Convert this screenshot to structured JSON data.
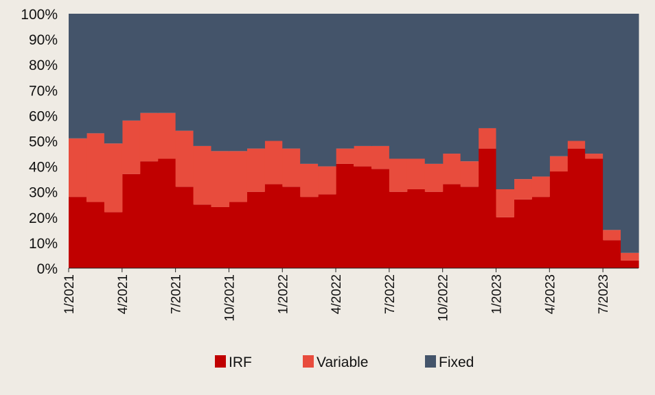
{
  "chart_data": {
    "type": "area",
    "stacked": true,
    "step": true,
    "x": [
      "1/2021",
      "2/2021",
      "3/2021",
      "4/2021",
      "5/2021",
      "6/2021",
      "7/2021",
      "8/2021",
      "9/2021",
      "10/2021",
      "11/2021",
      "12/2021",
      "1/2022",
      "2/2022",
      "3/2022",
      "4/2022",
      "5/2022",
      "6/2022",
      "7/2022",
      "8/2022",
      "9/2022",
      "10/2022",
      "11/2022",
      "12/2022",
      "1/2023",
      "2/2023",
      "3/2023",
      "4/2023",
      "5/2023",
      "6/2023",
      "7/2023",
      "8/2023"
    ],
    "x_tick_labels": [
      "1/2021",
      "4/2021",
      "7/2021",
      "10/2021",
      "1/2022",
      "4/2022",
      "7/2022",
      "10/2022",
      "1/2023",
      "4/2023",
      "7/2023"
    ],
    "series": [
      {
        "name": "IRF",
        "color": "#c00000",
        "values": [
          28,
          26,
          22,
          37,
          42,
          43,
          32,
          25,
          24,
          26,
          30,
          33,
          32,
          28,
          29,
          41,
          40,
          39,
          30,
          31,
          30,
          33,
          32,
          47,
          20,
          27,
          28,
          38,
          47,
          43,
          11,
          3
        ]
      },
      {
        "name": "Variable",
        "color": "#e84c3d",
        "values": [
          23,
          27,
          27,
          21,
          19,
          18,
          22,
          23,
          22,
          20,
          17,
          17,
          15,
          13,
          11,
          6,
          8,
          9,
          13,
          12,
          11,
          12,
          10,
          8,
          11,
          8,
          8,
          6,
          3,
          2,
          4,
          3
        ]
      },
      {
        "name": "Fixed",
        "color": "#44546a",
        "values": [
          49,
          47,
          51,
          42,
          39,
          39,
          46,
          52,
          54,
          54,
          53,
          50,
          53,
          59,
          60,
          53,
          52,
          52,
          57,
          57,
          59,
          55,
          58,
          45,
          69,
          65,
          64,
          56,
          50,
          55,
          85,
          94
        ]
      }
    ],
    "y_tick_labels": [
      "0%",
      "10%",
      "20%",
      "30%",
      "40%",
      "50%",
      "60%",
      "70%",
      "80%",
      "90%",
      "100%"
    ],
    "ylim": [
      0,
      100
    ],
    "legend_position": "bottom",
    "title": "",
    "xlabel": "",
    "ylabel": ""
  }
}
